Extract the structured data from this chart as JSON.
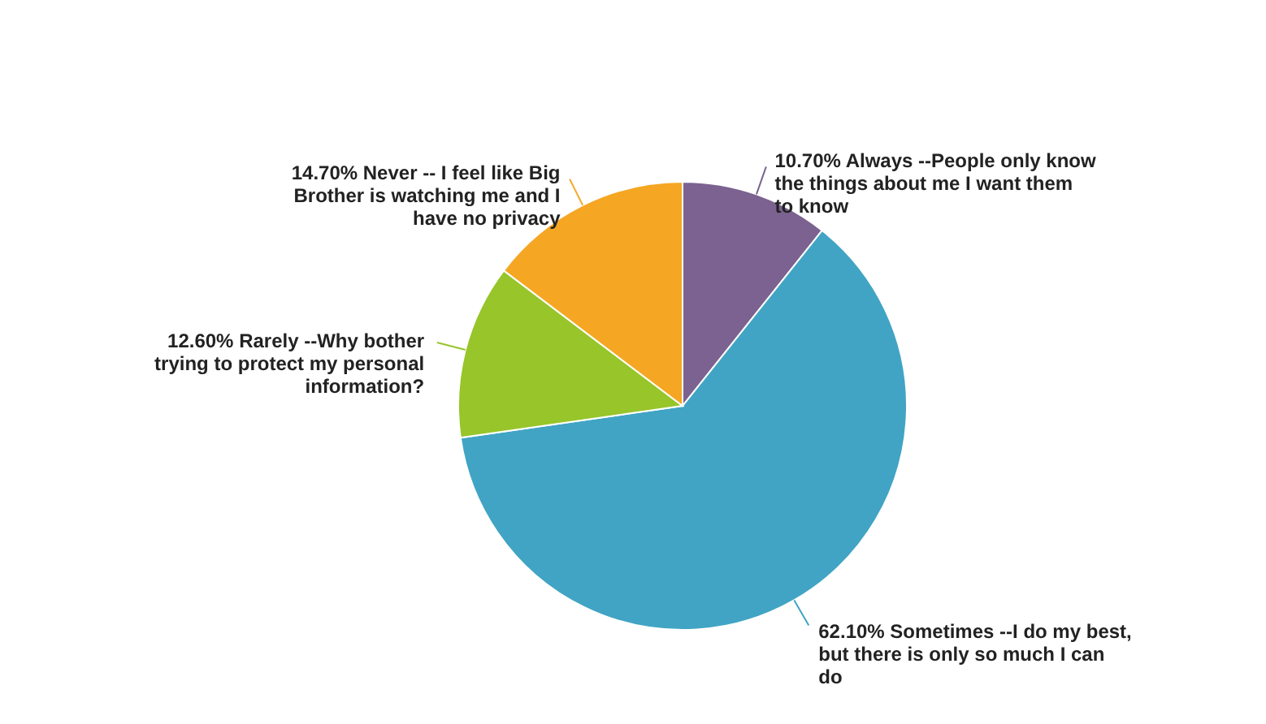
{
  "chart_data": {
    "type": "pie",
    "categories": [
      "Always --People only know the things about me I want them to know",
      "Sometimes --I do my best, but there is only so much I can do",
      "Rarely --Why bother trying to protect my personal information?",
      "Never -- I feel like Big Brother is watching me and I have no privacy"
    ],
    "values": [
      10.7,
      62.1,
      12.6,
      14.7
    ],
    "value_labels": [
      "10.70%",
      "62.10%",
      "12.60%",
      "14.70%"
    ],
    "colors": [
      "#7b6290",
      "#41a4c4",
      "#97c52a",
      "#f5a623"
    ]
  }
}
